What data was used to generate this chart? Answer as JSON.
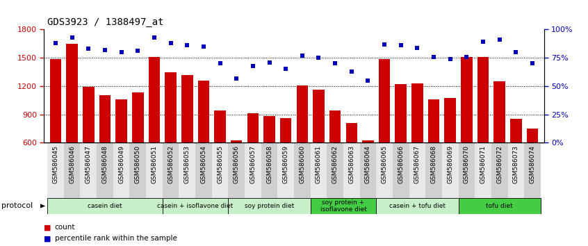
{
  "title": "GDS3923 / 1388497_at",
  "samples": [
    "GSM586045",
    "GSM586046",
    "GSM586047",
    "GSM586048",
    "GSM586049",
    "GSM586050",
    "GSM586051",
    "GSM586052",
    "GSM586053",
    "GSM586054",
    "GSM586055",
    "GSM586056",
    "GSM586057",
    "GSM586058",
    "GSM586059",
    "GSM586060",
    "GSM586061",
    "GSM586062",
    "GSM586063",
    "GSM586064",
    "GSM586065",
    "GSM586066",
    "GSM586067",
    "GSM586068",
    "GSM586069",
    "GSM586070",
    "GSM586071",
    "GSM586072",
    "GSM586073",
    "GSM586074"
  ],
  "counts": [
    1490,
    1650,
    1190,
    1100,
    1060,
    1130,
    1510,
    1350,
    1320,
    1260,
    940,
    625,
    910,
    880,
    860,
    1210,
    1165,
    940,
    810,
    625,
    1490,
    1220,
    1230,
    1060,
    1075,
    1510,
    1510,
    1250,
    855,
    750
  ],
  "percentile_ranks": [
    88,
    93,
    83,
    82,
    80,
    81,
    93,
    88,
    86,
    85,
    70,
    57,
    68,
    71,
    65,
    77,
    75,
    70,
    63,
    55,
    87,
    86,
    84,
    76,
    74,
    76,
    89,
    91,
    80,
    70
  ],
  "ylim_left": [
    600,
    1800
  ],
  "ylim_right": [
    0,
    100
  ],
  "yticks_left": [
    600,
    900,
    1200,
    1500,
    1800
  ],
  "yticks_right": [
    0,
    25,
    50,
    75,
    100
  ],
  "protocol_groups": [
    {
      "label": "casein diet",
      "start": 0,
      "end": 7,
      "dark": false
    },
    {
      "label": "casein + isoflavone diet",
      "start": 7,
      "end": 11,
      "dark": false
    },
    {
      "label": "soy protein diet",
      "start": 11,
      "end": 16,
      "dark": false
    },
    {
      "label": "soy protein +\nisoflavone diet",
      "start": 16,
      "end": 20,
      "dark": true
    },
    {
      "label": "casein + tofu diet",
      "start": 20,
      "end": 25,
      "dark": false
    },
    {
      "label": "tofu diet",
      "start": 25,
      "end": 30,
      "dark": true
    }
  ],
  "light_green": "#c8f0c8",
  "dark_green": "#44cc44",
  "bar_color": "#CC0000",
  "percentile_color": "#0000BB",
  "bg_color": "#FFFFFF",
  "tick_bg_light": "#e8e8e8",
  "tick_bg_dark": "#d0d0d0"
}
